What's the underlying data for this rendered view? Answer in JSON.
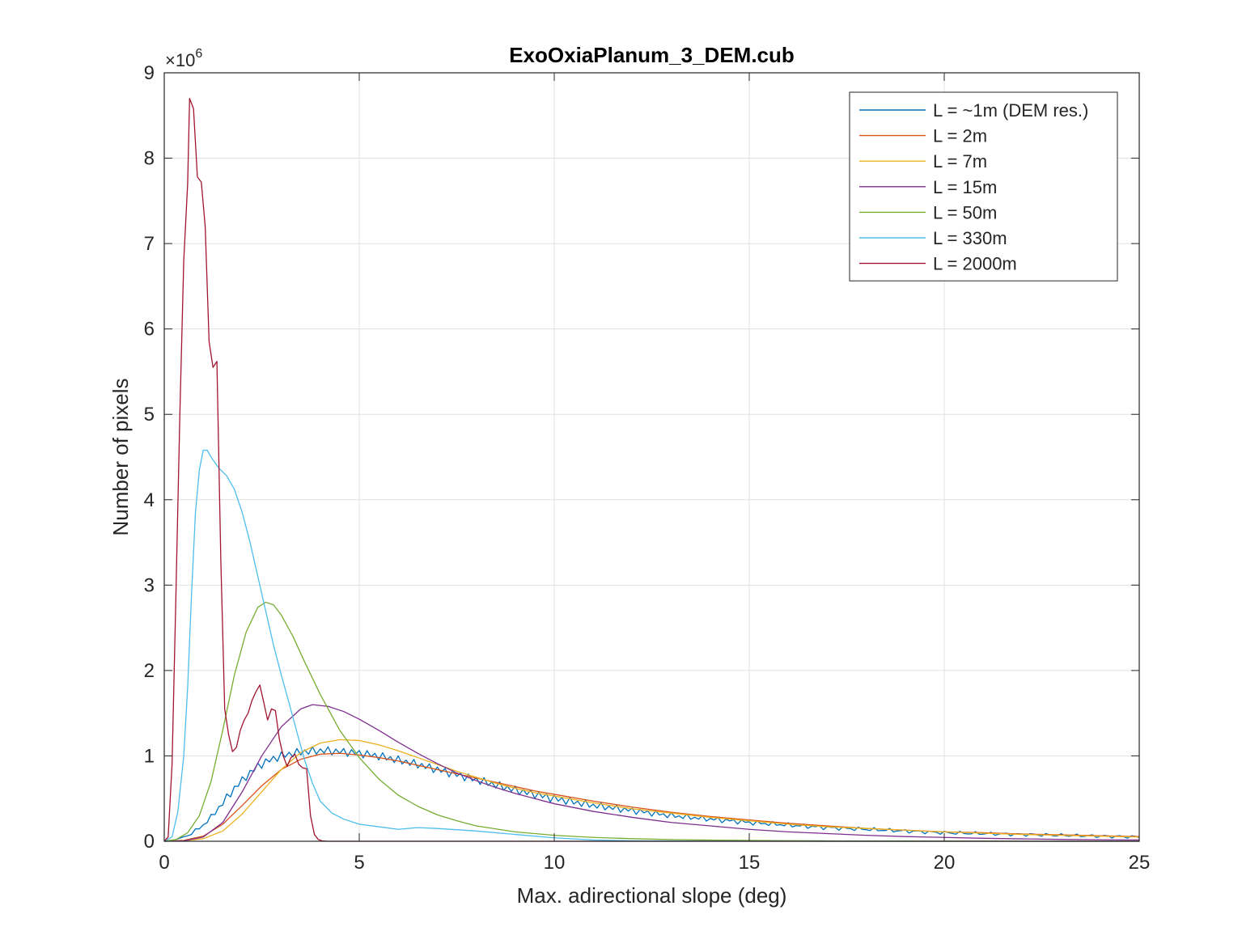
{
  "chart_data": {
    "type": "line",
    "title": "ExoOxiaPlanum_3_DEM.cub",
    "xlabel": "Max. adirectional slope (deg)",
    "ylabel": "Number of pixels",
    "y_exponent_label": "×10",
    "y_exponent_power": "6",
    "xlim": [
      0,
      25
    ],
    "ylim": [
      0,
      9
    ],
    "y_scale": 1000000,
    "grid": true,
    "legend_position": "top-right",
    "x_ticks": [
      0,
      5,
      10,
      15,
      20,
      25
    ],
    "y_ticks": [
      0,
      1,
      2,
      3,
      4,
      5,
      6,
      7,
      8,
      9
    ],
    "series": [
      {
        "name": "L = ~1m (DEM res.)",
        "color": "#0072BD",
        "noisy": true,
        "x": [
          0,
          0.3,
          0.6,
          0.9,
          1.2,
          1.5,
          1.8,
          2.1,
          2.4,
          2.7,
          3.0,
          3.3,
          3.6,
          3.9,
          4.2,
          4.5,
          4.8,
          5.2,
          5.6,
          6.0,
          6.5,
          7.0,
          7.5,
          8.0,
          8.5,
          9.0,
          9.5,
          10,
          11,
          12,
          13,
          14,
          15,
          16,
          17,
          18,
          19,
          20,
          21,
          22,
          23,
          24,
          25
        ],
        "y": [
          0,
          0.02,
          0.07,
          0.15,
          0.28,
          0.45,
          0.62,
          0.76,
          0.88,
          0.95,
          1.0,
          1.03,
          1.05,
          1.06,
          1.06,
          1.05,
          1.04,
          1.02,
          0.99,
          0.95,
          0.9,
          0.84,
          0.78,
          0.72,
          0.66,
          0.6,
          0.55,
          0.5,
          0.42,
          0.36,
          0.3,
          0.26,
          0.22,
          0.19,
          0.16,
          0.14,
          0.12,
          0.1,
          0.09,
          0.08,
          0.07,
          0.06,
          0.05
        ]
      },
      {
        "name": "L = 2m",
        "color": "#D95319",
        "noisy": false,
        "x": [
          0,
          0.5,
          1.0,
          1.5,
          2.0,
          2.5,
          3.0,
          3.5,
          4.0,
          4.5,
          5.0,
          5.5,
          6.0,
          6.5,
          7.0,
          7.5,
          8.0,
          8.5,
          9.0,
          9.5,
          10,
          11,
          12,
          13,
          14,
          15,
          16,
          17,
          18,
          19,
          20,
          21,
          22,
          23,
          24,
          25
        ],
        "y": [
          0,
          0.01,
          0.06,
          0.2,
          0.42,
          0.65,
          0.84,
          0.96,
          1.02,
          1.03,
          1.01,
          0.98,
          0.94,
          0.89,
          0.84,
          0.79,
          0.74,
          0.69,
          0.64,
          0.59,
          0.55,
          0.47,
          0.4,
          0.34,
          0.29,
          0.25,
          0.21,
          0.18,
          0.15,
          0.13,
          0.11,
          0.1,
          0.085,
          0.075,
          0.065,
          0.055
        ]
      },
      {
        "name": "L = 7m",
        "color": "#EDB120",
        "noisy": false,
        "x": [
          0,
          0.5,
          1.0,
          1.5,
          2.0,
          2.5,
          3.0,
          3.5,
          4.0,
          4.5,
          5.0,
          5.5,
          6.0,
          6.5,
          7.0,
          7.5,
          8.0,
          8.5,
          9.0,
          9.5,
          10,
          11,
          12,
          13,
          14,
          15,
          16,
          17,
          18,
          19,
          20,
          21,
          22,
          23,
          24,
          25
        ],
        "y": [
          0,
          0.005,
          0.03,
          0.12,
          0.32,
          0.58,
          0.84,
          1.04,
          1.15,
          1.19,
          1.18,
          1.13,
          1.06,
          0.98,
          0.9,
          0.82,
          0.75,
          0.68,
          0.62,
          0.57,
          0.53,
          0.45,
          0.38,
          0.33,
          0.28,
          0.24,
          0.2,
          0.17,
          0.15,
          0.13,
          0.11,
          0.095,
          0.08,
          0.07,
          0.06,
          0.05
        ]
      },
      {
        "name": "L = 15m",
        "color": "#7E2F8E",
        "noisy": false,
        "x": [
          0,
          0.5,
          1.0,
          1.5,
          2.0,
          2.5,
          3.0,
          3.5,
          3.8,
          4.2,
          4.6,
          5.0,
          5.5,
          6.0,
          6.5,
          7.0,
          7.5,
          8.0,
          8.5,
          9.0,
          9.5,
          10,
          11,
          12,
          13,
          14,
          15,
          16,
          17,
          18,
          19,
          20,
          21,
          22,
          23,
          24,
          25
        ],
        "y": [
          0,
          0.005,
          0.05,
          0.22,
          0.58,
          1.0,
          1.34,
          1.55,
          1.6,
          1.58,
          1.52,
          1.43,
          1.3,
          1.16,
          1.03,
          0.91,
          0.8,
          0.71,
          0.63,
          0.56,
          0.5,
          0.44,
          0.35,
          0.28,
          0.22,
          0.18,
          0.14,
          0.11,
          0.09,
          0.07,
          0.055,
          0.045,
          0.035,
          0.028,
          0.022,
          0.018,
          0.015
        ]
      },
      {
        "name": "L = 50m",
        "color": "#77AC30",
        "noisy": false,
        "x": [
          0,
          0.3,
          0.6,
          0.9,
          1.2,
          1.5,
          1.8,
          2.1,
          2.4,
          2.6,
          2.8,
          3.0,
          3.3,
          3.6,
          4.0,
          4.5,
          5.0,
          5.5,
          6.0,
          6.5,
          7.0,
          7.5,
          8.0,
          9.0,
          10,
          11,
          12,
          13,
          14,
          15,
          16,
          17,
          18,
          20,
          22,
          25
        ],
        "y": [
          0,
          0.02,
          0.1,
          0.3,
          0.7,
          1.3,
          1.95,
          2.45,
          2.74,
          2.8,
          2.77,
          2.65,
          2.4,
          2.1,
          1.72,
          1.3,
          0.98,
          0.73,
          0.54,
          0.41,
          0.31,
          0.24,
          0.18,
          0.11,
          0.07,
          0.045,
          0.03,
          0.02,
          0.014,
          0.01,
          0.007,
          0.005,
          0.003,
          0.002,
          0.001,
          0
        ]
      },
      {
        "name": "L = 330m",
        "color": "#4DBEEE",
        "noisy": false,
        "x": [
          0,
          0.2,
          0.35,
          0.5,
          0.6,
          0.7,
          0.8,
          0.9,
          1.0,
          1.1,
          1.2,
          1.4,
          1.6,
          1.8,
          2.0,
          2.2,
          2.4,
          2.6,
          2.8,
          3.0,
          3.2,
          3.4,
          3.6,
          3.8,
          4.0,
          4.3,
          4.6,
          5.0,
          5.5,
          6.0,
          6.5,
          7.0,
          8.0,
          9.0,
          10,
          11,
          12,
          14,
          16,
          20,
          25
        ],
        "y": [
          0,
          0.05,
          0.35,
          1.0,
          1.8,
          2.9,
          3.85,
          4.35,
          4.58,
          4.58,
          4.5,
          4.37,
          4.28,
          4.12,
          3.85,
          3.5,
          3.1,
          2.7,
          2.3,
          1.95,
          1.62,
          1.28,
          0.95,
          0.68,
          0.47,
          0.33,
          0.26,
          0.2,
          0.17,
          0.14,
          0.16,
          0.15,
          0.12,
          0.08,
          0.04,
          0.015,
          0.006,
          0.002,
          0.001,
          0,
          0
        ]
      },
      {
        "name": "L = 2000m",
        "color": "#A2142F",
        "noisy": false,
        "x": [
          0,
          0.1,
          0.2,
          0.3,
          0.4,
          0.5,
          0.6,
          0.65,
          0.75,
          0.85,
          0.95,
          1.05,
          1.15,
          1.25,
          1.35,
          1.45,
          1.55,
          1.65,
          1.75,
          1.85,
          1.95,
          2.05,
          2.15,
          2.25,
          2.35,
          2.45,
          2.55,
          2.65,
          2.75,
          2.85,
          2.95,
          3.05,
          3.15,
          3.25,
          3.35,
          3.45,
          3.55,
          3.65,
          3.75,
          3.85,
          3.95,
          4.05,
          4.2,
          4.5,
          5,
          6,
          8,
          10,
          25
        ],
        "y": [
          0,
          0.05,
          0.9,
          2.9,
          5.0,
          6.8,
          7.7,
          8.7,
          8.58,
          7.78,
          7.72,
          7.2,
          5.85,
          5.55,
          5.62,
          3.3,
          1.55,
          1.25,
          1.05,
          1.1,
          1.3,
          1.42,
          1.5,
          1.65,
          1.75,
          1.83,
          1.63,
          1.42,
          1.55,
          1.53,
          1.2,
          1.0,
          0.88,
          0.98,
          1.02,
          0.9,
          0.86,
          0.85,
          0.3,
          0.08,
          0.02,
          0.005,
          0,
          0,
          0,
          0,
          0,
          0,
          0
        ]
      }
    ]
  }
}
